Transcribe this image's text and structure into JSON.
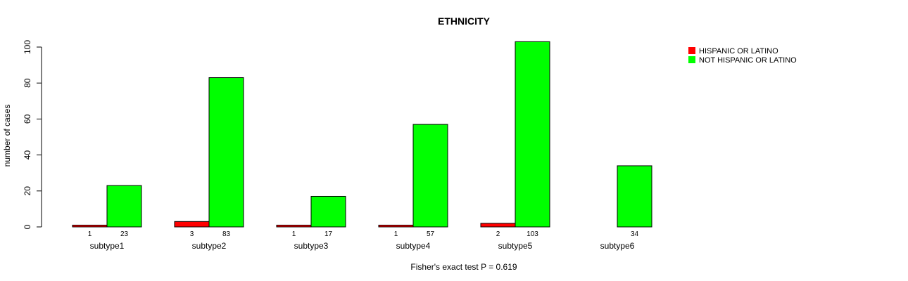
{
  "chart_data": {
    "type": "bar",
    "title": "ETHNICITY",
    "ylabel": "number of cases",
    "xlabel": "Fisher's exact test P = 0.619",
    "categories": [
      "subtype1",
      "subtype2",
      "subtype3",
      "subtype4",
      "subtype5",
      "subtype6"
    ],
    "series": [
      {
        "name": "HISPANIC OR LATINO",
        "color": "#ff0000",
        "values": [
          1,
          3,
          1,
          1,
          2,
          0
        ],
        "labels": [
          "1",
          "3",
          "1",
          "1",
          "2",
          ""
        ]
      },
      {
        "name": "NOT HISPANIC OR LATINO",
        "color": "#00ff00",
        "values": [
          23,
          83,
          17,
          57,
          103,
          34
        ],
        "labels": [
          "23",
          "83",
          "17",
          "57",
          "103",
          "34"
        ]
      }
    ],
    "ylim": [
      0,
      100
    ],
    "yticks": [
      0,
      20,
      40,
      60,
      80,
      100
    ],
    "grid": false,
    "legend_position": "top-right"
  }
}
